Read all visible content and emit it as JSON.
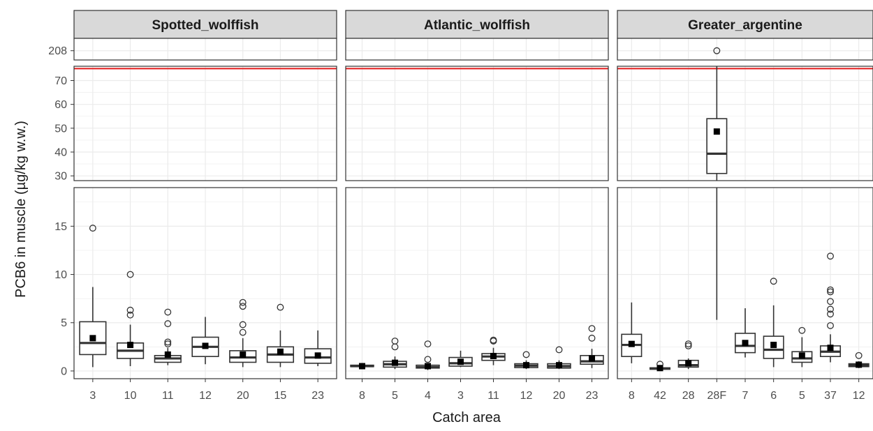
{
  "chart_data": {
    "type": "boxplot",
    "xlabel": "Catch area",
    "ylabel": "PCB6 in muscle (µg/kg w.w.)",
    "reference_line": {
      "value": 75,
      "color": "#e31a1c"
    },
    "y_bands": [
      {
        "name": "top",
        "ylim": [
          205,
          212
        ],
        "ticks": [
          208
        ]
      },
      {
        "name": "middle",
        "ylim": [
          28,
          76
        ],
        "ticks": [
          30,
          40,
          50,
          60,
          70
        ]
      },
      {
        "name": "bottom",
        "ylim": [
          -0.8,
          19
        ],
        "ticks": [
          0,
          5,
          10,
          15
        ]
      }
    ],
    "grid": true,
    "box_fill": "#ffffff",
    "box_stroke": "#333333",
    "mean_marker": "filled-square",
    "panels": [
      {
        "strip": "Spotted_wolffish",
        "categories": [
          "3",
          "10",
          "11",
          "12",
          "20",
          "15",
          "23"
        ],
        "boxes": [
          {
            "min": 0.4,
            "q1": 1.7,
            "median": 2.9,
            "q3": 5.1,
            "max": 8.7,
            "mean": 3.4,
            "outliers": [
              14.8
            ]
          },
          {
            "min": 0.5,
            "q1": 1.3,
            "median": 2.1,
            "q3": 2.9,
            "max": 4.8,
            "mean": 2.7,
            "outliers": [
              5.8,
              6.3,
              10.0
            ]
          },
          {
            "min": 0.6,
            "q1": 0.9,
            "median": 1.3,
            "q3": 1.6,
            "max": 2.4,
            "mean": 1.7,
            "outliers": [
              2.8,
              3.0,
              4.9,
              6.1
            ]
          },
          {
            "min": 0.7,
            "q1": 1.5,
            "median": 2.5,
            "q3": 3.5,
            "max": 5.6,
            "mean": 2.6,
            "outliers": []
          },
          {
            "min": 0.4,
            "q1": 0.9,
            "median": 1.4,
            "q3": 2.1,
            "max": 3.4,
            "mean": 1.7,
            "outliers": [
              4.0,
              4.8,
              6.7,
              7.1
            ]
          },
          {
            "min": 0.4,
            "q1": 0.9,
            "median": 1.7,
            "q3": 2.5,
            "max": 4.2,
            "mean": 2.0,
            "outliers": [
              6.6
            ]
          },
          {
            "min": 0.5,
            "q1": 0.8,
            "median": 1.4,
            "q3": 2.3,
            "max": 4.2,
            "mean": 1.6,
            "outliers": []
          }
        ]
      },
      {
        "strip": "Atlantic_wolffish",
        "categories": [
          "8",
          "5",
          "4",
          "3",
          "11",
          "12",
          "20",
          "23"
        ],
        "boxes": [
          {
            "min": 0.35,
            "q1": 0.45,
            "median": 0.5,
            "q3": 0.6,
            "max": 0.7,
            "mean": 0.5,
            "outliers": []
          },
          {
            "min": 0.2,
            "q1": 0.4,
            "median": 0.7,
            "q3": 1.0,
            "max": 1.5,
            "mean": 0.85,
            "outliers": [
              2.5,
              3.1
            ]
          },
          {
            "min": 0.1,
            "q1": 0.3,
            "median": 0.4,
            "q3": 0.6,
            "max": 0.8,
            "mean": 0.5,
            "outliers": [
              1.2,
              2.8
            ]
          },
          {
            "min": 0.4,
            "q1": 0.5,
            "median": 0.8,
            "q3": 1.4,
            "max": 2.1,
            "mean": 0.95,
            "outliers": []
          },
          {
            "min": 0.6,
            "q1": 1.1,
            "median": 1.5,
            "q3": 1.8,
            "max": 2.4,
            "mean": 1.55,
            "outliers": [
              3.1,
              3.2
            ]
          },
          {
            "min": 0.2,
            "q1": 0.35,
            "median": 0.55,
            "q3": 0.75,
            "max": 1.1,
            "mean": 0.6,
            "outliers": [
              1.7
            ]
          },
          {
            "min": 0.2,
            "q1": 0.3,
            "median": 0.5,
            "q3": 0.75,
            "max": 1.1,
            "mean": 0.6,
            "outliers": [
              2.2
            ]
          },
          {
            "min": 0.3,
            "q1": 0.7,
            "median": 1.0,
            "q3": 1.6,
            "max": 2.3,
            "mean": 1.3,
            "outliers": [
              3.4,
              4.4
            ]
          }
        ]
      },
      {
        "strip": "Greater_argentine",
        "categories": [
          "8",
          "42",
          "28",
          "28F",
          "7",
          "6",
          "5",
          "37",
          "12"
        ],
        "boxes": [
          {
            "min": 0.8,
            "q1": 1.5,
            "median": 2.7,
            "q3": 3.8,
            "max": 7.1,
            "mean": 2.8,
            "outliers": []
          },
          {
            "min": 0.1,
            "q1": 0.18,
            "median": 0.25,
            "q3": 0.33,
            "max": 0.5,
            "mean": 0.3,
            "outliers": [
              0.7
            ]
          },
          {
            "min": 0.2,
            "q1": 0.4,
            "median": 0.6,
            "q3": 1.1,
            "max": 1.3,
            "mean": 0.8,
            "outliers": [
              2.6,
              2.8
            ]
          },
          {
            "min": 5.3,
            "q1": 31.0,
            "median": 39.3,
            "q3": 54.0,
            "max": 76.0,
            "mean": 48.6,
            "outliers": [
              208
            ]
          },
          {
            "min": 1.4,
            "q1": 1.9,
            "median": 2.6,
            "q3": 3.9,
            "max": 6.5,
            "mean": 2.9,
            "outliers": []
          },
          {
            "min": 0.4,
            "q1": 1.3,
            "median": 2.2,
            "q3": 3.6,
            "max": 6.8,
            "mean": 2.7,
            "outliers": [
              9.3
            ]
          },
          {
            "min": 0.4,
            "q1": 0.9,
            "median": 1.3,
            "q3": 2.0,
            "max": 3.5,
            "mean": 1.6,
            "outliers": [
              4.2
            ]
          },
          {
            "min": 0.9,
            "q1": 1.5,
            "median": 2.0,
            "q3": 2.6,
            "max": 3.8,
            "mean": 2.4,
            "outliers": [
              4.7,
              5.9,
              6.4,
              7.2,
              8.2,
              8.4,
              11.9
            ]
          },
          {
            "min": 0.3,
            "q1": 0.45,
            "median": 0.6,
            "q3": 0.75,
            "max": 1.0,
            "mean": 0.65,
            "outliers": [
              1.6
            ]
          }
        ]
      }
    ]
  }
}
